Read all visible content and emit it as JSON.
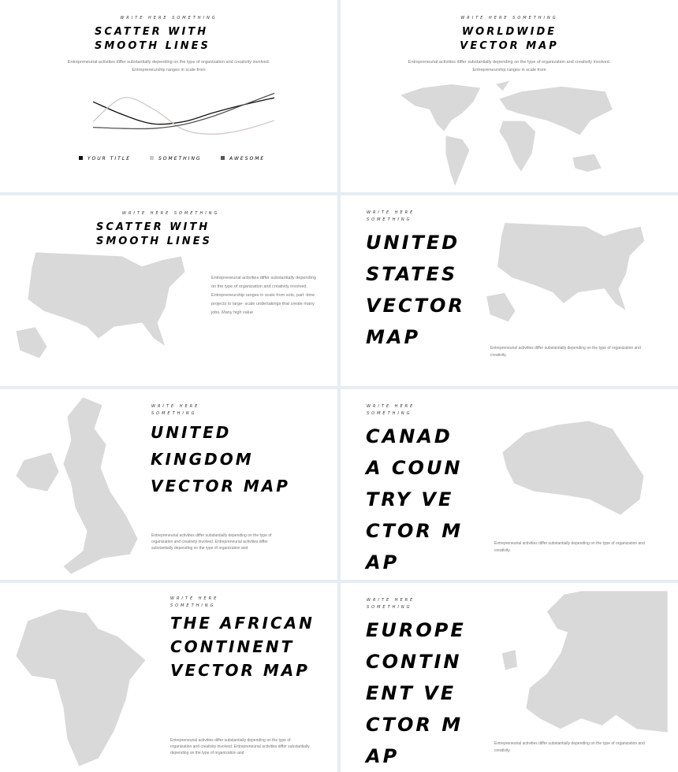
{
  "slides": [
    {
      "subtitle": "WRITE HERE SOMETHING",
      "title": "SCATTER WITH SMOOTH LINES",
      "text": "Entrepreneurial activities differ substantially depending on the type of organization and creativity involved. Entrepreneurship ranges in scale from"
    },
    {
      "subtitle": "WRITE HERE SOMETHING",
      "title": "WORLDWIDE VECTOR MAP",
      "text": "Entrepreneurial activities differ substantially depending on the type of organization and creativity involved. Entrepreneurship ranges in scale from"
    },
    {
      "subtitle": "WRITE HERE SOMETHING",
      "title": "SCATTER WITH SMOOTH LINES",
      "text": "Entrepreneurial activities differ substantially depending on the type of organization and creativity involved. Entrepreneurship ranges in scale from solo, part -time projects to large- scale undertakings that create many jobs. Many high value"
    },
    {
      "subtitle": "WRITE HERE SOMETHING",
      "title": "UNITED STATES VECTOR MAP",
      "text": "Entrepreneurial activities differ substantially depending on the type of organization and creativity."
    },
    {
      "subtitle": "WRITE HERE SOMETHING",
      "title": "UNITED KINGDOM VECTOR MAP",
      "text": "Entrepreneurial activities differ substantially depending on the type of organization and creativity involved. Entrepreneurial activities differ substantially depending on the type of organization and"
    },
    {
      "subtitle": "WRITE HERE SOMETHING",
      "title": "CANADA COUNTRY VECTOR MAP",
      "text": "Entrepreneurial activities differ substantially depending on the type of organization and creativity."
    },
    {
      "subtitle": "WRITE HERE SOMETHING",
      "title": "THE AFRICAN CONTINENT VECTOR MAP",
      "text": "Entrepreneurial activities differ substantially depending on the type of organization and creativity involved. Entrepreneurial activities differ substantially depending on the type of organization and"
    },
    {
      "subtitle": "WRITE HERE SOMETHING",
      "title": "EUROPE CONTINENT VECTOR MAP",
      "text": "Entrepreneurial activities differ substantially depending on the type of organization and creativity."
    }
  ],
  "chart_data": {
    "type": "line",
    "x": [
      0,
      1,
      2,
      3,
      4,
      5,
      6
    ],
    "ylim": [
      0,
      10
    ],
    "grid": false,
    "legend_placement": "bottom",
    "series": [
      {
        "name": "YOUR TITLE",
        "color": "#111111",
        "values": [
          6.5,
          4.2,
          2.6,
          3.0,
          4.6,
          6.0,
          7.2
        ]
      },
      {
        "name": "SOMETHING",
        "color": "#d2c8c2",
        "values": [
          3.0,
          7.2,
          5.2,
          1.6,
          0.8,
          1.6,
          3.2
        ]
      },
      {
        "name": "AWESOME",
        "color": "#555555",
        "values": [
          2.0,
          1.8,
          1.8,
          2.5,
          4.0,
          6.0,
          8.0
        ]
      }
    ]
  }
}
